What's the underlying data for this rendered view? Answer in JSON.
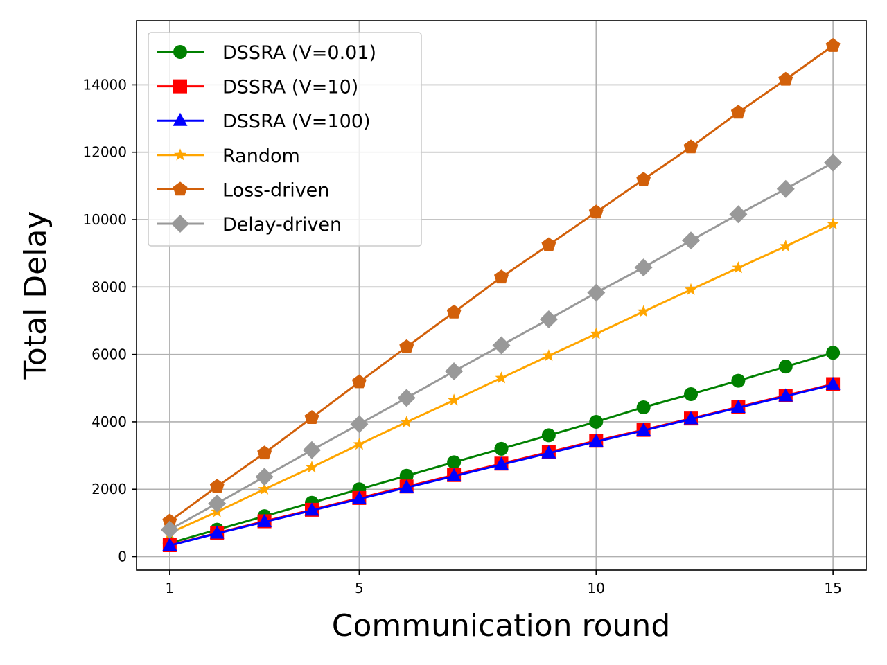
{
  "chart_data": {
    "type": "line",
    "title": "",
    "xlabel": "Communication round",
    "ylabel": "Total Delay",
    "xlim": [
      0.3,
      15.7
    ],
    "ylim": [
      -400,
      15900
    ],
    "xticks": [
      1,
      5,
      10,
      15
    ],
    "yticks": [
      0,
      2000,
      4000,
      6000,
      8000,
      10000,
      12000,
      14000
    ],
    "grid": true,
    "legend_position": "top-left",
    "x": [
      1,
      2,
      3,
      4,
      5,
      6,
      7,
      8,
      9,
      10,
      11,
      12,
      13,
      14,
      15
    ],
    "series": [
      {
        "name": "DSSRA (V=0.01)",
        "color": "#008000",
        "marker": "circle",
        "values": [
          400,
          800,
          1200,
          1600,
          2000,
          2400,
          2800,
          3200,
          3600,
          4000,
          4430,
          4820,
          5220,
          5640,
          6050
        ]
      },
      {
        "name": "DSSRA (V=10)",
        "color": "#ff0000",
        "marker": "square",
        "values": [
          340,
          700,
          1050,
          1390,
          1740,
          2080,
          2420,
          2760,
          3100,
          3440,
          3760,
          4100,
          4440,
          4780,
          5120
        ]
      },
      {
        "name": "DSSRA (V=100)",
        "color": "#0000ff",
        "marker": "triangle",
        "values": [
          330,
          690,
          1030,
          1370,
          1710,
          2050,
          2390,
          2730,
          3070,
          3410,
          3740,
          4080,
          4420,
          4760,
          5100
        ]
      },
      {
        "name": "Random",
        "color": "#ffa500",
        "marker": "star",
        "values": [
          700,
          1330,
          2000,
          2650,
          3330,
          3990,
          4640,
          5300,
          5960,
          6610,
          7270,
          7920,
          8570,
          9210,
          9870
        ]
      },
      {
        "name": "Loss-driven",
        "color": "#d2600a",
        "marker": "pentagon",
        "values": [
          1050,
          2080,
          3070,
          4120,
          5180,
          6220,
          7250,
          8290,
          9250,
          10220,
          11190,
          12150,
          13180,
          14160,
          15160
        ]
      },
      {
        "name": "Delay-driven",
        "color": "#999999",
        "marker": "diamond",
        "values": [
          800,
          1580,
          2370,
          3160,
          3930,
          4710,
          5500,
          6270,
          7040,
          7830,
          8580,
          9380,
          10160,
          10910,
          11690
        ]
      }
    ]
  }
}
